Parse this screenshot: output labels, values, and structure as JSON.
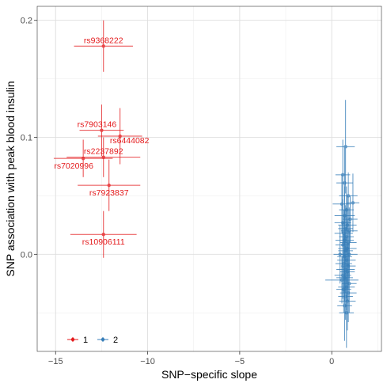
{
  "chart_data": {
    "type": "scatter",
    "xlabel": "SNP−specific slope",
    "ylabel": "SNP association with peak blood insulin",
    "xlim": [
      -16,
      2.7
    ],
    "ylim": [
      -0.083,
      0.212
    ],
    "x_ticks": [
      {
        "value": -15,
        "label": "−15"
      },
      {
        "value": -10,
        "label": "−10"
      },
      {
        "value": -5,
        "label": "−5"
      },
      {
        "value": 0,
        "label": "0"
      }
    ],
    "y_ticks": [
      {
        "value": 0.0,
        "label": "0.0"
      },
      {
        "value": 0.1,
        "label": "0.1"
      },
      {
        "value": 0.2,
        "label": "0.2"
      }
    ],
    "grid": true,
    "legend": {
      "position": "bottom-left",
      "entries": [
        {
          "name": "1",
          "color": "#E41A1C"
        },
        {
          "name": "2",
          "color": "#377EB8"
        }
      ]
    },
    "series": [
      {
        "name": "1",
        "color": "#E41A1C",
        "points": [
          {
            "x": -12.4,
            "y": 0.178,
            "xerr": 1.6,
            "yerr": 0.022,
            "label": "rs9368222",
            "label_pos": "above"
          },
          {
            "x": -12.5,
            "y": 0.106,
            "xerr": 1.2,
            "yerr": 0.022,
            "label": "rs7903146",
            "label_pos": "above-left"
          },
          {
            "x": -11.5,
            "y": 0.101,
            "xerr": 1.2,
            "yerr": 0.024,
            "label": "rs6444082",
            "label_pos": "below-right"
          },
          {
            "x": -12.4,
            "y": 0.083,
            "xerr": 2.0,
            "yerr": 0.017,
            "label": "rs2237892",
            "label_pos": "above"
          },
          {
            "x": -13.5,
            "y": 0.082,
            "xerr": 1.6,
            "yerr": 0.016,
            "label": "rs7020996",
            "label_pos": "below-left"
          },
          {
            "x": -12.1,
            "y": 0.059,
            "xerr": 1.7,
            "yerr": 0.022,
            "label": "rs7923837",
            "label_pos": "below"
          },
          {
            "x": -12.4,
            "y": 0.017,
            "xerr": 1.8,
            "yerr": 0.02,
            "label": "rs10906111",
            "label_pos": "below"
          }
        ]
      },
      {
        "name": "2",
        "color": "#377EB8",
        "points": [
          {
            "x": 0.75,
            "y": 0.092,
            "xerr": 0.5,
            "yerr": 0.04
          },
          {
            "x": 0.6,
            "y": 0.068,
            "xerr": 0.4,
            "yerr": 0.03
          },
          {
            "x": 0.7,
            "y": 0.061,
            "xerr": 0.45,
            "yerr": 0.03
          },
          {
            "x": 0.9,
            "y": 0.05,
            "xerr": 0.5,
            "yerr": 0.02
          },
          {
            "x": 1.15,
            "y": 0.044,
            "xerr": 0.35,
            "yerr": 0.025
          },
          {
            "x": 0.55,
            "y": 0.043,
            "xerr": 0.5,
            "yerr": 0.025
          },
          {
            "x": 0.8,
            "y": 0.038,
            "xerr": 0.4,
            "yerr": 0.02
          },
          {
            "x": 0.7,
            "y": 0.033,
            "xerr": 0.55,
            "yerr": 0.025
          },
          {
            "x": 1.0,
            "y": 0.03,
            "xerr": 0.4,
            "yerr": 0.02
          },
          {
            "x": 0.6,
            "y": 0.027,
            "xerr": 0.45,
            "yerr": 0.02
          },
          {
            "x": 0.85,
            "y": 0.025,
            "xerr": 0.5,
            "yerr": 0.025
          },
          {
            "x": 0.75,
            "y": 0.022,
            "xerr": 0.4,
            "yerr": 0.02
          },
          {
            "x": 0.95,
            "y": 0.02,
            "xerr": 0.45,
            "yerr": 0.02
          },
          {
            "x": 0.65,
            "y": 0.018,
            "xerr": 0.5,
            "yerr": 0.02
          },
          {
            "x": 0.8,
            "y": 0.015,
            "xerr": 0.4,
            "yerr": 0.025
          },
          {
            "x": 0.7,
            "y": 0.012,
            "xerr": 0.5,
            "yerr": 0.02
          },
          {
            "x": 0.9,
            "y": 0.01,
            "xerr": 0.45,
            "yerr": 0.02
          },
          {
            "x": 0.6,
            "y": 0.008,
            "xerr": 0.4,
            "yerr": 0.02
          },
          {
            "x": 0.85,
            "y": 0.005,
            "xerr": 0.5,
            "yerr": 0.025
          },
          {
            "x": 0.75,
            "y": 0.003,
            "xerr": 0.4,
            "yerr": 0.02
          },
          {
            "x": 0.95,
            "y": 0.0,
            "xerr": 0.45,
            "yerr": 0.02
          },
          {
            "x": 0.45,
            "y": 0.0,
            "xerr": 0.35,
            "yerr": 0.025
          },
          {
            "x": 0.7,
            "y": -0.002,
            "xerr": 0.4,
            "yerr": 0.02
          },
          {
            "x": 0.8,
            "y": -0.005,
            "xerr": 0.5,
            "yerr": 0.02
          },
          {
            "x": 0.65,
            "y": -0.008,
            "xerr": 0.45,
            "yerr": 0.025
          },
          {
            "x": 0.9,
            "y": -0.01,
            "xerr": 0.4,
            "yerr": 0.02
          },
          {
            "x": 0.75,
            "y": -0.013,
            "xerr": 0.5,
            "yerr": 0.02
          },
          {
            "x": 0.85,
            "y": -0.015,
            "xerr": 0.4,
            "yerr": 0.025
          },
          {
            "x": 0.6,
            "y": -0.018,
            "xerr": 0.45,
            "yerr": 0.02
          },
          {
            "x": 0.7,
            "y": -0.02,
            "xerr": 0.45,
            "yerr": 0.02
          },
          {
            "x": 0.55,
            "y": -0.022,
            "xerr": 0.9,
            "yerr": 0.02
          },
          {
            "x": 0.95,
            "y": -0.025,
            "xerr": 0.4,
            "yerr": 0.025
          },
          {
            "x": 0.8,
            "y": -0.028,
            "xerr": 0.45,
            "yerr": 0.02
          },
          {
            "x": 0.65,
            "y": -0.03,
            "xerr": 0.4,
            "yerr": 0.02
          },
          {
            "x": 0.9,
            "y": -0.033,
            "xerr": 0.45,
            "yerr": 0.025
          },
          {
            "x": 0.75,
            "y": -0.036,
            "xerr": 0.4,
            "yerr": 0.02
          },
          {
            "x": 0.85,
            "y": -0.04,
            "xerr": 0.45,
            "yerr": 0.025
          },
          {
            "x": 0.7,
            "y": -0.044,
            "xerr": 0.4,
            "yerr": 0.03
          },
          {
            "x": 0.8,
            "y": -0.05,
            "xerr": 0.4,
            "yerr": 0.03
          }
        ]
      }
    ]
  }
}
